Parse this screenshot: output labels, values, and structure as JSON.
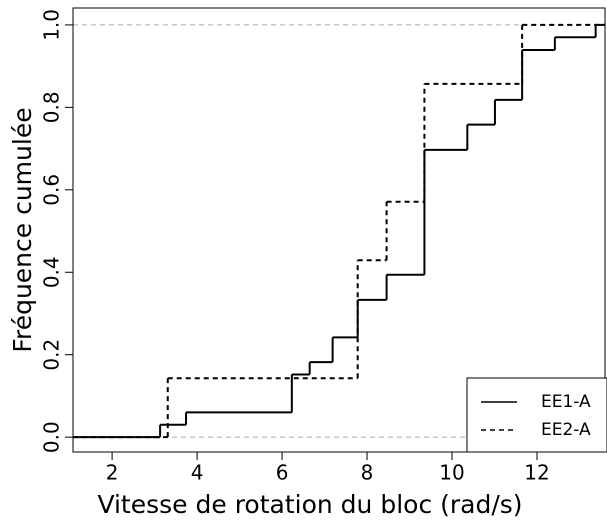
{
  "chart_data": {
    "type": "step",
    "xlabel": "Vitesse de rotation du bloc (rad/s)",
    "ylabel": "Fréquence cumulée",
    "series": [
      {
        "name": "EE1-A",
        "color": "#000000",
        "dash": "solid",
        "x": [
          3.13,
          3.74,
          6.23,
          6.65,
          7.19,
          7.78,
          8.46,
          9.35,
          10.36,
          11.01,
          11.65,
          12.42,
          13.38
        ],
        "values": [
          0.03,
          0.06,
          0.152,
          0.182,
          0.242,
          0.333,
          0.394,
          0.697,
          0.758,
          0.818,
          0.939,
          0.97,
          1.0
        ]
      },
      {
        "name": "EE2-A",
        "color": "#000000",
        "dash": "dashed",
        "x": [
          3.31,
          7.78,
          8.46,
          9.35,
          11.65
        ],
        "values": [
          0.143,
          0.429,
          0.571,
          0.857,
          1.0
        ]
      }
    ],
    "xlim": [
      1.08,
      13.6
    ],
    "ylim": [
      -0.036,
      1.041
    ],
    "xticks": [
      2,
      4,
      6,
      8,
      10,
      12
    ],
    "yticks": [
      {
        "value": 0,
        "label": "0.0"
      },
      {
        "value": 0.2,
        "label": "0.2"
      },
      {
        "value": 0.4,
        "label": "0.4"
      },
      {
        "value": 0.6,
        "label": "0.6"
      },
      {
        "value": 0.8,
        "label": "0.8"
      },
      {
        "value": 1,
        "label": "1.0"
      }
    ],
    "hlines": [
      0,
      1
    ],
    "legend": "bottomright"
  }
}
